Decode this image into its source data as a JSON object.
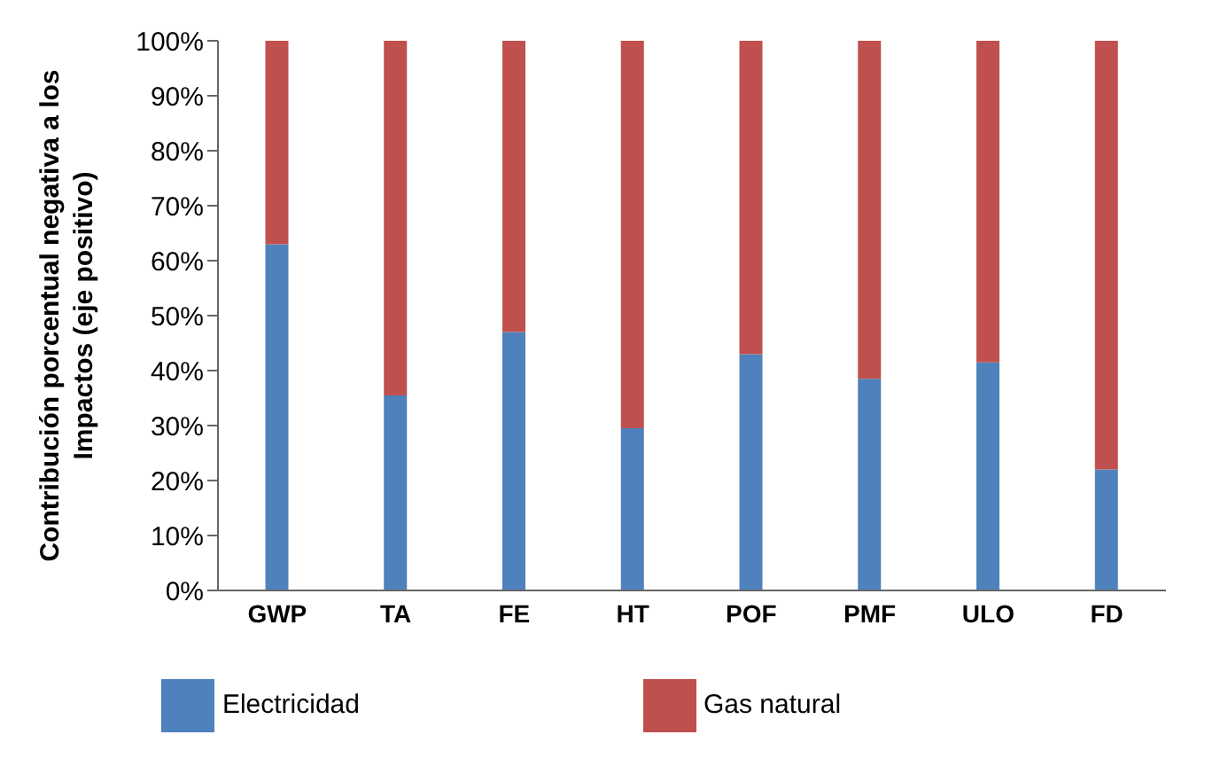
{
  "chart_data": {
    "type": "bar",
    "stacked": true,
    "ylabel": "Contribución porcentual negativa a los Impactos (eje positivo)",
    "categories": [
      "GWP",
      "TA",
      "FE",
      "HT",
      "POF",
      "PMF",
      "ULO",
      "FD"
    ],
    "series": [
      {
        "name": "Electricidad",
        "color": "#4f81bd",
        "values": [
          63,
          35.5,
          47,
          29.5,
          43,
          38.5,
          41.5,
          22
        ]
      },
      {
        "name": "Gas natural",
        "color": "#c0504d",
        "values": [
          37,
          64.5,
          53,
          70.5,
          57,
          61.5,
          58.5,
          78
        ]
      }
    ],
    "ylim": [
      0,
      100
    ],
    "yticks": [
      {
        "value": 0,
        "label": "0%"
      },
      {
        "value": 10,
        "label": "10%"
      },
      {
        "value": 20,
        "label": "20%"
      },
      {
        "value": 30,
        "label": "30%"
      },
      {
        "value": 40,
        "label": "40%"
      },
      {
        "value": 50,
        "label": "50%"
      },
      {
        "value": 60,
        "label": "60%"
      },
      {
        "value": 70,
        "label": "70%"
      },
      {
        "value": 80,
        "label": "80%"
      },
      {
        "value": 90,
        "label": "90%"
      },
      {
        "value": 100,
        "label": "100%"
      }
    ],
    "grid": false,
    "legend": "bottom"
  }
}
